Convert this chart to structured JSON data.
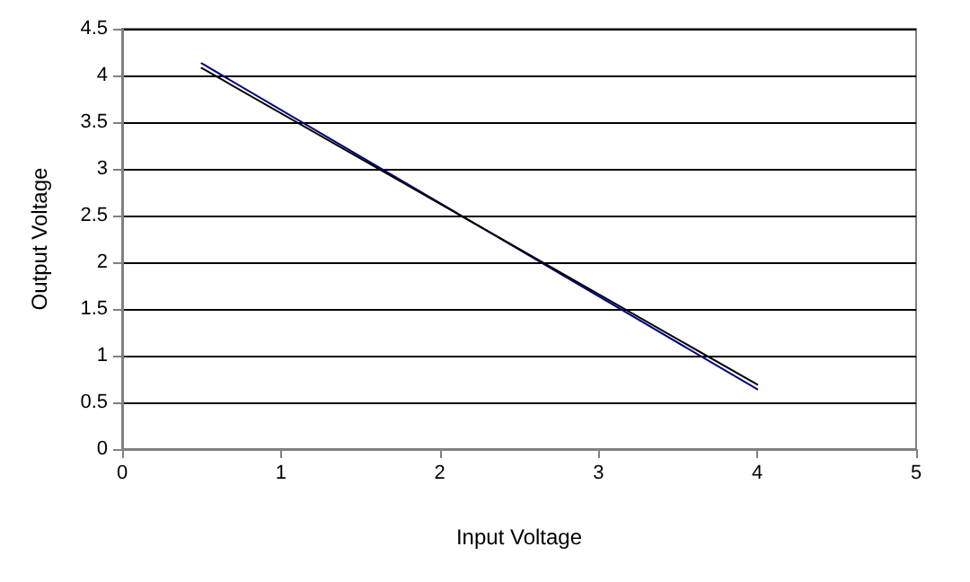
{
  "chart_data": {
    "type": "line",
    "xlabel": "Input Voltage",
    "ylabel": "Output Voltage",
    "x": [
      0.5,
      4
    ],
    "series": [
      {
        "color": "#000080",
        "values": [
          4.13,
          0.64
        ]
      },
      {
        "color": "#000000",
        "values": [
          4.08,
          0.69
        ]
      }
    ],
    "xlim": [
      0,
      5
    ],
    "xticks": [
      0,
      1,
      2,
      3,
      4,
      5
    ],
    "ylim": [
      0,
      4.5
    ],
    "yticks": [
      0,
      0.5,
      1,
      1.5,
      2,
      2.5,
      3,
      3.5,
      4,
      4.5
    ],
    "grid": "y",
    "marker": "none",
    "line_style": "solid"
  }
}
